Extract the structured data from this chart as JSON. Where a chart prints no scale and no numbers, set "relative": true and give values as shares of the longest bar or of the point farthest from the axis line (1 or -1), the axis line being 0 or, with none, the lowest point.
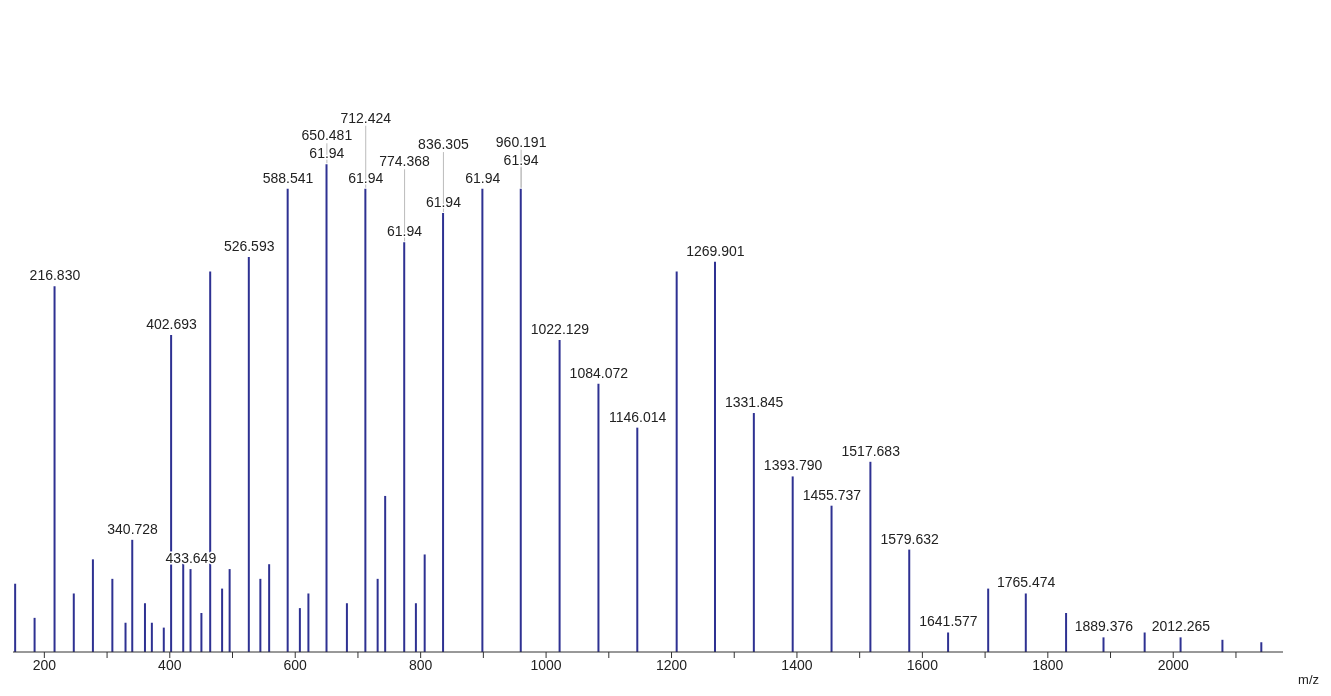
{
  "chart_data": {
    "type": "bar",
    "relative": true,
    "xlabel": "m/z",
    "x": [
      154,
      185,
      216.83,
      247.5,
      278,
      309,
      330,
      340.728,
      361,
      372,
      391,
      402.693,
      422,
      433.649,
      451,
      465,
      484,
      496,
      526.593,
      545,
      559,
      588.541,
      608,
      621.6,
      650.481,
      683,
      712.424,
      732,
      744,
      774.368,
      793,
      807,
      836.305,
      899,
      960.191,
      1022.129,
      1084.072,
      1146.014,
      1208.8,
      1269.901,
      1331.845,
      1393.79,
      1455.737,
      1517.683,
      1579.632,
      1641.577,
      1705.5,
      1765.474,
      1829.7,
      1889.376,
      1955,
      2012.265,
      2079,
      2141
    ],
    "series": [
      {
        "color": "#2e3192",
        "values": [
          0.14,
          0.07,
          0.75,
          0.12,
          0.19,
          0.15,
          0.06,
          0.23,
          0.1,
          0.06,
          0.05,
          0.65,
          0.19,
          0.17,
          0.08,
          0.78,
          0.13,
          0.17,
          0.81,
          0.15,
          0.18,
          0.95,
          0.09,
          0.12,
          1,
          0.1,
          0.95,
          0.15,
          0.32,
          0.84,
          0.1,
          0.2,
          0.9,
          0.95,
          0.95,
          0.64,
          0.55,
          0.46,
          0.78,
          0.8,
          0.49,
          0.36,
          0.3,
          0.39,
          0.21,
          0.04,
          0.13,
          0.12,
          0.08,
          0.03,
          0.04,
          0.03,
          0.025,
          0.02
        ]
      }
    ],
    "xlim": [
      150,
      2175
    ],
    "xticks": [
      200,
      {
        "value": 300,
        "label": null
      },
      400,
      {
        "value": 500,
        "label": null
      },
      600,
      {
        "value": 700,
        "label": null
      },
      800,
      {
        "value": 900,
        "label": null
      },
      1000,
      {
        "value": 1100,
        "label": null
      },
      1200,
      {
        "value": 1300,
        "label": null
      },
      1400,
      {
        "value": 1500,
        "label": null
      },
      1600,
      {
        "value": 1700,
        "label": null
      },
      1800,
      {
        "value": 1900,
        "label": null
      },
      2000,
      {
        "value": 2100,
        "label": null
      }
    ],
    "annotations": [
      {
        "text": "61.94",
        "x": 650.481,
        "y": 1
      },
      {
        "text": "61.94",
        "x": 712.424,
        "y": 0.95
      },
      {
        "text": "61.94",
        "x": 774.368,
        "y": 0.84
      },
      {
        "text": "61.94",
        "x": 836.305,
        "y": 0.9
      },
      {
        "text": "61.94",
        "x": 899,
        "y": 0.95
      },
      {
        "text": "61.94",
        "x": 960.191,
        "y": 0.95
      },
      {
        "text": "216.830",
        "x": 216.83,
        "y": 0.75
      },
      {
        "text": "340.728",
        "x": 340.728,
        "y": 0.23
      },
      {
        "text": "402.693",
        "x": 402.693,
        "y": 0.65
      },
      {
        "text": "433.649",
        "x": 433.649,
        "y": 0.17
      },
      {
        "text": "526.593",
        "x": 526.593,
        "y": 0.81
      },
      {
        "text": "588.541",
        "x": 588.541,
        "y": 0.95
      },
      {
        "text": "650.481",
        "x": 650.481,
        "y": 1
      },
      {
        "text": "712.424",
        "x": 712.424,
        "y": 0.95
      },
      {
        "text": "774.368",
        "x": 774.368,
        "y": 0.84
      },
      {
        "text": "836.305",
        "x": 836.305,
        "y": 0.9
      },
      {
        "text": "960.191",
        "x": 960.191,
        "y": 0.95
      },
      {
        "text": "1022.129",
        "x": 1022.129,
        "y": 0.64
      },
      {
        "text": "1084.072",
        "x": 1084.072,
        "y": 0.55
      },
      {
        "text": "1146.014",
        "x": 1146.014,
        "y": 0.46
      },
      {
        "text": "1269.901",
        "x": 1269.901,
        "y": 0.8
      },
      {
        "text": "1331.845",
        "x": 1331.845,
        "y": 0.49
      },
      {
        "text": "1393.790",
        "x": 1393.79,
        "y": 0.36
      },
      {
        "text": "1455.737",
        "x": 1455.737,
        "y": 0.3
      },
      {
        "text": "1517.683",
        "x": 1517.683,
        "y": 0.39
      },
      {
        "text": "1579.632",
        "x": 1579.632,
        "y": 0.21
      },
      {
        "text": "1641.577",
        "x": 1641.577,
        "y": 0.04
      },
      {
        "text": "1765.474",
        "x": 1765.474,
        "y": 0.12
      },
      {
        "text": "1889.376",
        "x": 1889.376,
        "y": 0.03
      },
      {
        "text": "2012.265",
        "x": 2012.265,
        "y": 0.03
      }
    ]
  }
}
